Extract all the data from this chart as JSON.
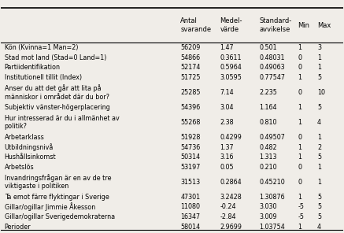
{
  "columns": [
    "Antal\nsvarande",
    "Medel-\nvärde",
    "Standard-\navvikelse",
    "Min",
    "Max"
  ],
  "col_header_lines": [
    [
      "Antal",
      "svarande"
    ],
    [
      "Medel-",
      "värde"
    ],
    [
      "Standard-",
      "avvikelse"
    ],
    [
      "Min"
    ],
    [
      "Max"
    ]
  ],
  "rows": [
    [
      "Kön (Kvinna=1 Man=2)",
      "56209",
      "1.47",
      "0.501",
      "1",
      "3"
    ],
    [
      "Stad mot land (Stad=0 Land=1)",
      "54866",
      "0.3611",
      "0.48031",
      "0",
      "1"
    ],
    [
      "Partiidentifikation",
      "52174",
      "0.5964",
      "0.49063",
      "0",
      "1"
    ],
    [
      "Institutionell tillit (Index)",
      "51725",
      "3.0595",
      "0.77547",
      "1",
      "5"
    ],
    [
      "Anser du att det går att lita på\nmänniskor i området där du bor?",
      "25285",
      "7.14",
      "2.235",
      "0",
      "10"
    ],
    [
      "Subjektiv vänster-högerplacering",
      "54396",
      "3.04",
      "1.164",
      "1",
      "5"
    ],
    [
      "Hur intresserad är du i allmänhet av\npolitik?",
      "55268",
      "2.38",
      "0.810",
      "1",
      "4"
    ],
    [
      "Arbetarklass",
      "51928",
      "0.4299",
      "0.49507",
      "0",
      "1"
    ],
    [
      "Utbildningsnivå",
      "54736",
      "1.37",
      "0.482",
      "1",
      "2"
    ],
    [
      "Hushållsinkomst",
      "50314",
      "3.16",
      "1.313",
      "1",
      "5"
    ],
    [
      "Arbetslös",
      "53197",
      "0.05",
      "0.210",
      "0",
      "1"
    ],
    [
      "Invandringsfrågan är en av de tre\nviktigaste i politiken",
      "31513",
      "0.2864",
      "0.45210",
      "0",
      "1"
    ],
    [
      "Ta emot färre flyktingar i Sverige",
      "47301",
      "3.2428",
      "1.30876",
      "1",
      "5"
    ],
    [
      "Gillar/ogillar Jimmie Åkesson",
      "11080",
      "-0.24",
      "3.030",
      "-5",
      "5"
    ],
    [
      "Gillar/ogillar Sverigedemokraterna",
      "16347",
      "-2.84",
      "3.009",
      "-5",
      "5"
    ],
    [
      "Perioder",
      "58014",
      "2.9699",
      "1.03754",
      "1",
      "4"
    ]
  ],
  "bg_color": "#f0ede8",
  "text_color": "#000000",
  "header_color": "#000000",
  "line_color": "#000000"
}
